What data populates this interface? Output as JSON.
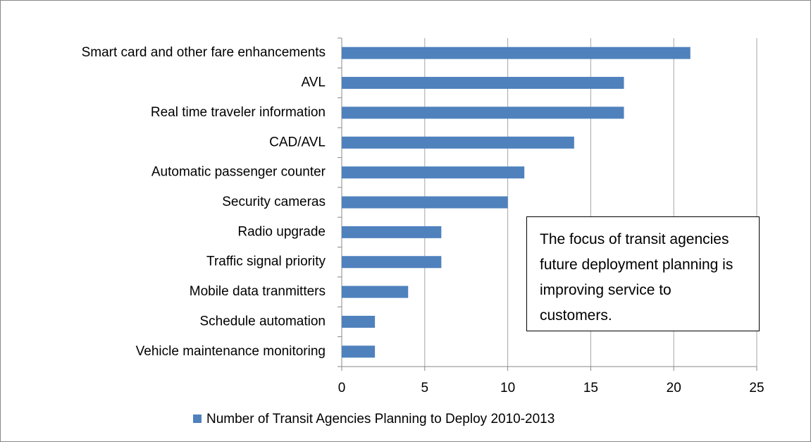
{
  "chart_data": {
    "type": "barh",
    "categories": [
      "Smart card and other fare enhancements",
      "AVL",
      "Real time traveler information",
      "CAD/AVL",
      "Automatic passenger counter",
      "Security cameras",
      "Radio upgrade",
      "Traffic signal priority",
      "Mobile data tranmitters",
      "Schedule automation",
      "Vehicle maintenance monitoring"
    ],
    "series": [
      {
        "name": "Number of Transit Agencies Planning to Deploy 2010-2013",
        "color": "#4f81bd",
        "values": [
          21,
          17,
          17,
          14,
          11,
          10,
          6,
          6,
          4,
          2,
          2
        ]
      }
    ],
    "xlim": [
      0,
      25
    ],
    "xticks": [
      0,
      5,
      10,
      15,
      20,
      25
    ],
    "grid": true,
    "legend": "bottom",
    "annotation": "The focus of transit agencies future deployment planning is improving service to customers."
  }
}
